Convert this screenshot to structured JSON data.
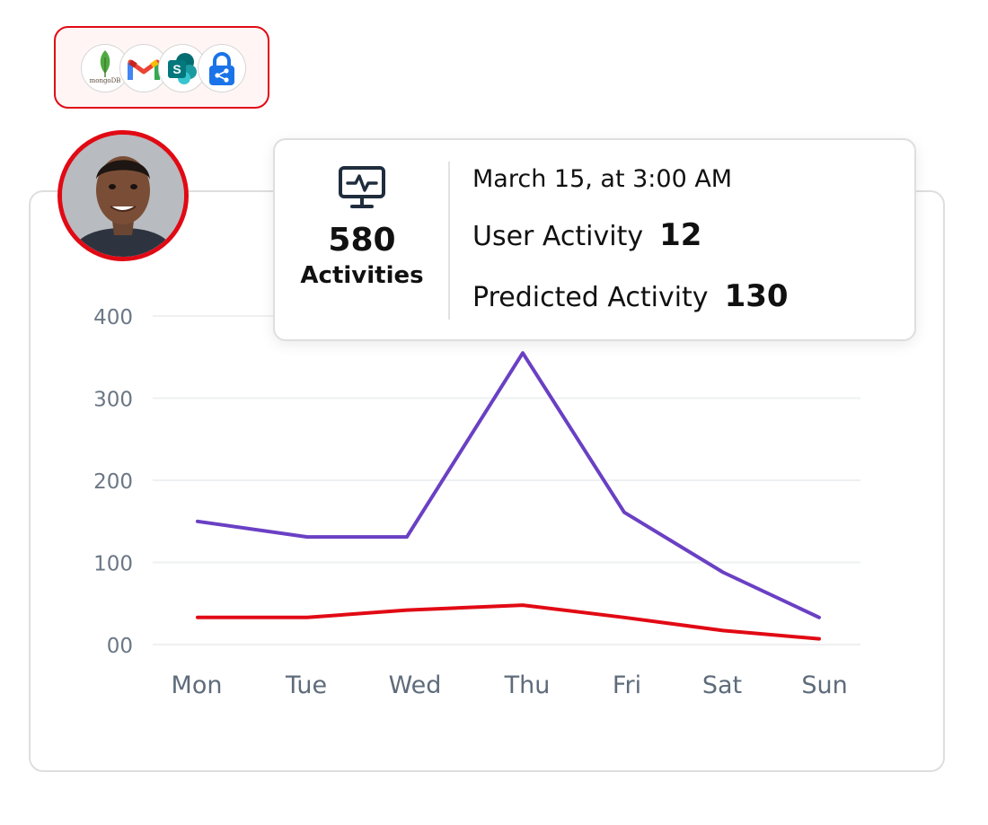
{
  "integrations": {
    "logos": [
      {
        "name": "mongodb-logo",
        "label": "mongoDB"
      },
      {
        "name": "gmail-logo",
        "label": ""
      },
      {
        "name": "sharepoint-logo",
        "label": "S"
      },
      {
        "name": "secure-share-logo",
        "label": ""
      }
    ]
  },
  "user": {
    "avatar_icon": "avatar"
  },
  "tooltip": {
    "icon": "monitor-pulse-icon",
    "total_count": "580",
    "total_label": "Activities",
    "timestamp": "March 15, at 3:00 AM",
    "user_activity_label": "User Activity",
    "user_activity_value": "12",
    "predicted_activity_label": "Predicted Activity",
    "predicted_activity_value": "130"
  },
  "chart_data": {
    "type": "line",
    "categories": [
      "Mon",
      "Tue",
      "Wed",
      "Thu",
      "Fri",
      "Sat",
      "Sun"
    ],
    "y_tick_labels": [
      "00",
      "100",
      "200",
      "300",
      "400"
    ],
    "y_ticks": [
      0,
      100,
      200,
      300,
      400
    ],
    "ylim": [
      0,
      400
    ],
    "grid": true,
    "series": [
      {
        "name": "Predicted Activity",
        "color": "#6a40c4",
        "values": [
          150,
          131,
          131,
          355,
          161,
          88,
          33
        ]
      },
      {
        "name": "User Activity",
        "color": "#e10a14",
        "values": [
          33,
          33,
          42,
          48,
          33,
          17,
          7
        ]
      }
    ]
  },
  "colors": {
    "accent": "#e10a14",
    "predicted": "#6a40c4",
    "user": "#e10a14"
  }
}
